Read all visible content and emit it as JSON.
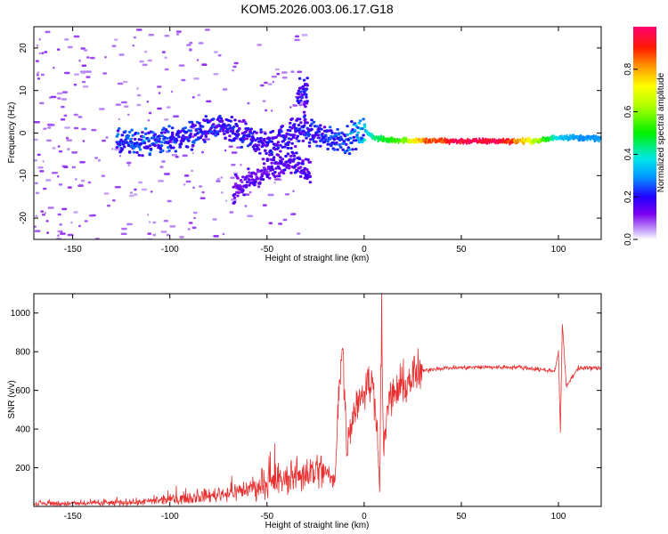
{
  "title": "KOM5.2026.003.06.17.G18",
  "chart_data": [
    {
      "type": "heatmap",
      "title": "KOM5.2026.003.06.17.G18",
      "xlabel": "Height of straight line (km)",
      "ylabel": "Frequency (Hz)",
      "xlim": [
        -170,
        122
      ],
      "ylim": [
        -25,
        25
      ],
      "xticks": [
        -150,
        -100,
        -50,
        0,
        50,
        100
      ],
      "yticks": [
        -20,
        -10,
        0,
        10,
        20
      ],
      "colorbar": {
        "label": "Normalized spectral amplitude",
        "range": [
          0.0,
          1.0
        ],
        "ticks": [
          "0.0",
          "0.2",
          "0.4",
          "0.6",
          "0.8"
        ],
        "tick_values": [
          0.0,
          0.2,
          0.4,
          0.6,
          0.8
        ]
      },
      "tracks": [
        {
          "name": "main-trace",
          "points": [
            [
              -128,
              -2.5,
              0.25
            ],
            [
              -110,
              -2.0,
              0.25
            ],
            [
              -95,
              -1.0,
              0.22
            ],
            [
              -80,
              1.0,
              0.22
            ],
            [
              -70,
              0.5,
              0.2
            ],
            [
              -50,
              -3.0,
              0.2
            ],
            [
              -35,
              1.0,
              0.2
            ],
            [
              -20,
              -1.0,
              0.22
            ],
            [
              -10,
              -1.5,
              0.25
            ],
            [
              0,
              0.5,
              0.35
            ],
            [
              5,
              -1.0,
              0.45
            ],
            [
              10,
              -1.5,
              0.5
            ],
            [
              20,
              -1.6,
              0.6
            ],
            [
              30,
              -1.7,
              0.85
            ],
            [
              50,
              -1.8,
              1.0
            ],
            [
              70,
              -1.8,
              1.0
            ],
            [
              90,
              -1.7,
              0.6
            ],
            [
              100,
              -0.8,
              0.35
            ],
            [
              110,
              -1.0,
              0.3
            ],
            [
              122,
              -1.2,
              0.3
            ]
          ]
        },
        {
          "name": "branch-upper",
          "points": [
            [
              -35,
              8.0,
              0.2
            ],
            [
              -30,
              11.0,
              0.2
            ],
            [
              -32,
              4.0,
              0.2
            ]
          ]
        },
        {
          "name": "branch-lower",
          "points": [
            [
              -68,
              -13.5,
              0.15
            ],
            [
              -55,
              -10.0,
              0.15
            ],
            [
              -40,
              -6.0,
              0.18
            ],
            [
              -28,
              -9.0,
              0.18
            ]
          ]
        }
      ],
      "scatter_region": {
        "x_range": [
          -170,
          -30
        ],
        "y_range": [
          -25,
          25
        ],
        "amplitude": 0.05
      }
    },
    {
      "type": "line",
      "xlabel": "Height of straight line (km)",
      "ylabel": "SNR (v/v)",
      "xlim": [
        -170,
        122
      ],
      "ylim": [
        0,
        1100
      ],
      "xticks": [
        -150,
        -100,
        -50,
        0,
        50,
        100
      ],
      "yticks": [
        200,
        400,
        600,
        800,
        1000
      ],
      "series": [
        {
          "name": "SNR",
          "color": "#e83030",
          "x": [
            -170,
            -150,
            -130,
            -110,
            -100,
            -90,
            -80,
            -70,
            -60,
            -50,
            -40,
            -30,
            -25,
            -20,
            -15,
            -13,
            -11,
            -9,
            -7,
            -5,
            -3,
            -1,
            1,
            3,
            5,
            7,
            8,
            9,
            10,
            12,
            15,
            20,
            25,
            30,
            35,
            40,
            60,
            80,
            98,
            100,
            101,
            102,
            104,
            110,
            122
          ],
          "y": [
            15,
            15,
            18,
            25,
            35,
            45,
            55,
            70,
            90,
            110,
            140,
            170,
            190,
            180,
            120,
            650,
            820,
            300,
            420,
            500,
            560,
            580,
            620,
            640,
            600,
            380,
            50,
            1080,
            250,
            520,
            580,
            620,
            670,
            700,
            710,
            715,
            720,
            720,
            700,
            800,
            380,
            950,
            620,
            715,
            715
          ]
        }
      ]
    }
  ]
}
